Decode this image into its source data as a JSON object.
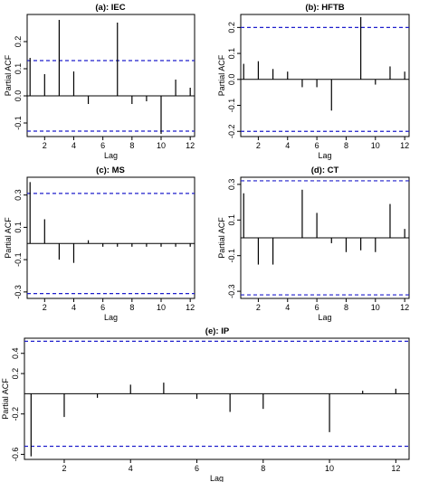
{
  "chart_data": [
    {
      "type": "bar",
      "title": "(a): IEC",
      "xlabel": "Lag",
      "ylabel": "Partial ACF",
      "x": [
        1,
        2,
        3,
        4,
        5,
        6,
        7,
        8,
        9,
        10,
        11,
        12
      ],
      "values": [
        0.14,
        0.08,
        0.28,
        0.09,
        -0.03,
        0.0,
        0.27,
        -0.03,
        -0.02,
        -0.14,
        0.06,
        0.03
      ],
      "confidence_band": [
        -0.13,
        0.13
      ],
      "xticks": [
        2,
        4,
        6,
        8,
        10,
        12
      ],
      "yticks": [
        -0.1,
        0.0,
        0.1,
        0.2
      ],
      "ylim": [
        -0.15,
        0.3
      ],
      "xlim": [
        0.8,
        12.3
      ]
    },
    {
      "type": "bar",
      "title": "(b): HFTB",
      "xlabel": "Lag",
      "ylabel": "Partial ACF",
      "x": [
        1,
        2,
        3,
        4,
        5,
        6,
        7,
        8,
        9,
        10,
        11,
        12
      ],
      "values": [
        0.06,
        0.07,
        0.04,
        0.03,
        -0.03,
        -0.03,
        -0.12,
        0.0,
        0.24,
        -0.02,
        0.05,
        0.03
      ],
      "confidence_band": [
        -0.2,
        0.2
      ],
      "xticks": [
        2,
        4,
        6,
        8,
        10,
        12
      ],
      "yticks": [
        -0.2,
        -0.1,
        0.0,
        0.1,
        0.2
      ],
      "ylim": [
        -0.22,
        0.25
      ],
      "xlim": [
        0.8,
        12.3
      ]
    },
    {
      "type": "bar",
      "title": "(c): MS",
      "xlabel": "Lag",
      "ylabel": "Partial ACF",
      "x": [
        1,
        2,
        3,
        4,
        5,
        6,
        7,
        8,
        9,
        10,
        11,
        12
      ],
      "values": [
        0.38,
        0.15,
        -0.1,
        -0.12,
        0.02,
        -0.02,
        -0.02,
        -0.02,
        -0.02,
        -0.02,
        -0.02,
        -0.02
      ],
      "confidence_band": [
        -0.31,
        0.31
      ],
      "xticks": [
        2,
        4,
        6,
        8,
        10,
        12
      ],
      "yticks": [
        -0.3,
        -0.1,
        0.1,
        0.3
      ],
      "ylim": [
        -0.34,
        0.41
      ],
      "xlim": [
        0.8,
        12.3
      ]
    },
    {
      "type": "bar",
      "title": "(d): CT",
      "xlabel": "Lag",
      "ylabel": "Partial ACF",
      "x": [
        1,
        2,
        3,
        4,
        5,
        6,
        7,
        8,
        9,
        10,
        11,
        12
      ],
      "values": [
        0.25,
        -0.15,
        -0.15,
        0.0,
        0.27,
        0.14,
        -0.03,
        -0.08,
        -0.07,
        -0.08,
        0.19,
        0.05
      ],
      "confidence_band": [
        -0.32,
        0.32
      ],
      "xticks": [
        2,
        4,
        6,
        8,
        10,
        12
      ],
      "yticks": [
        -0.3,
        -0.1,
        0.1,
        0.3
      ],
      "ylim": [
        -0.34,
        0.34
      ],
      "xlim": [
        0.8,
        12.3
      ]
    },
    {
      "type": "bar",
      "title": "(e): IP",
      "xlabel": "Lag",
      "ylabel": "Partial ACF",
      "x": [
        1,
        2,
        3,
        4,
        5,
        6,
        7,
        8,
        9,
        10,
        11,
        12
      ],
      "values": [
        -0.62,
        -0.23,
        -0.04,
        0.09,
        0.11,
        -0.05,
        -0.18,
        -0.15,
        0.0,
        -0.38,
        0.03,
        0.05
      ],
      "confidence_band": [
        -0.52,
        0.52
      ],
      "xticks": [
        2,
        4,
        6,
        8,
        10,
        12
      ],
      "yticks": [
        -0.6,
        -0.2,
        0.2,
        0.4
      ],
      "ylim": [
        -0.65,
        0.55
      ],
      "xlim": [
        0.8,
        12.4
      ]
    }
  ],
  "colors": {
    "axis": "#000000",
    "bar": "#000000",
    "confidence_band": "#1f1fcc"
  }
}
